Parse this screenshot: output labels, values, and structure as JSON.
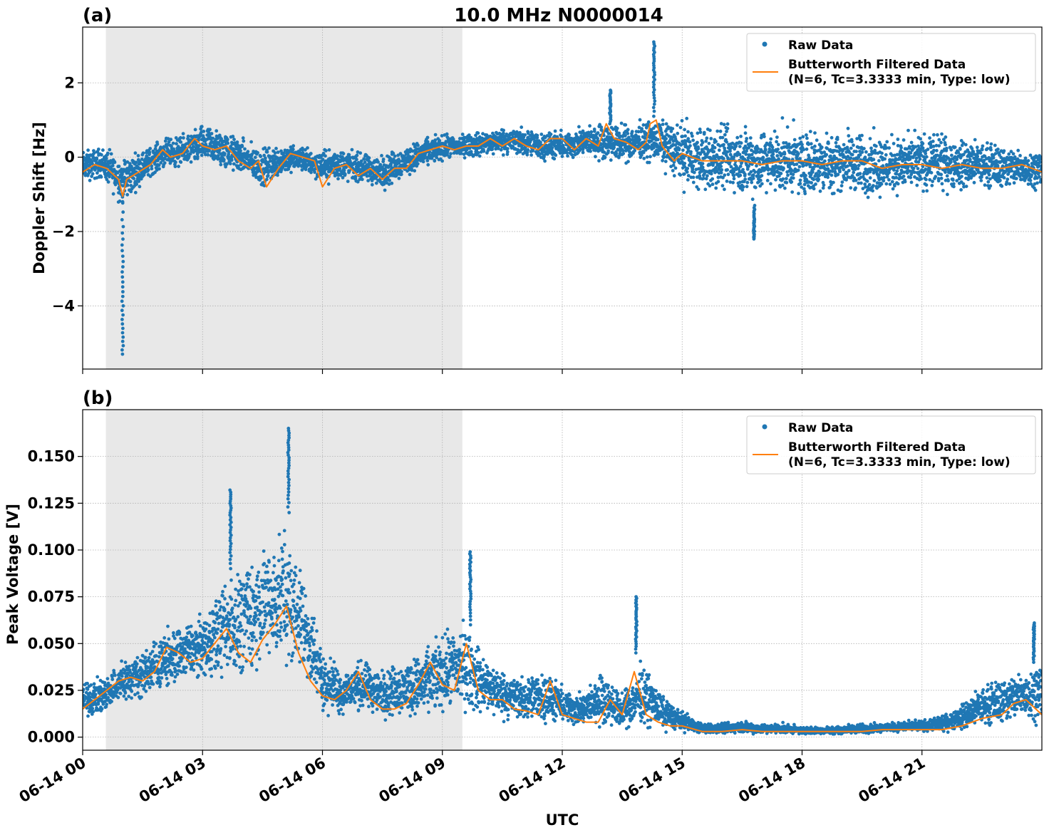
{
  "figure": {
    "title": "10.0 MHz N0000014",
    "xlabel": "UTC"
  },
  "colors": {
    "raw": "#1f77b4",
    "filtered": "#ff7f0e",
    "night_shade": "#e8e8e8",
    "grid": "#b0b0b0"
  },
  "chart_data": [
    {
      "type": "scatter",
      "panel_label": "(a)",
      "ylabel": "Doppler Shift [Hz]",
      "xlim_hours": [
        0,
        24
      ],
      "ylim": [
        -5.7,
        3.5
      ],
      "yticks": [
        2,
        0,
        -2,
        -4
      ],
      "ytick_labels": [
        "2",
        "0",
        "−2",
        "−4"
      ],
      "xticks_hours": [
        0,
        3,
        6,
        9,
        12,
        15,
        18,
        21
      ],
      "shaded_band_hours": [
        0.58,
        9.5
      ],
      "grid": true,
      "legend_position": "top-right",
      "legend": {
        "raw_label": "Raw Data",
        "filtered_label_1": "Butterworth Filtered Data",
        "filtered_label_2": "(N=6, Tc=3.3333 min, Type: low)"
      },
      "series": [
        {
          "name": "Butterworth Filtered Data (N=6, Tc=3.3333 min, Type: low)",
          "kind": "line",
          "x_hours": [
            0,
            0.3,
            0.6,
            0.9,
            1.0,
            1.1,
            1.4,
            1.7,
            2.0,
            2.2,
            2.5,
            2.8,
            3.0,
            3.3,
            3.6,
            3.9,
            4.2,
            4.4,
            4.6,
            4.9,
            5.2,
            5.5,
            5.8,
            6.0,
            6.3,
            6.6,
            6.9,
            7.2,
            7.5,
            7.8,
            8.1,
            8.4,
            8.7,
            9.0,
            9.3,
            9.6,
            9.9,
            10.2,
            10.5,
            10.8,
            11.1,
            11.4,
            11.7,
            12.0,
            12.3,
            12.6,
            12.9,
            13.1,
            13.3,
            13.6,
            13.9,
            14.1,
            14.2,
            14.35,
            14.5,
            14.8,
            15.0,
            15.5,
            16.0,
            16.5,
            17.0,
            17.5,
            18.0,
            18.5,
            19.0,
            19.5,
            20.0,
            20.5,
            21.0,
            21.5,
            22.0,
            22.5,
            23.0,
            23.5,
            24.0
          ],
          "y": [
            -0.4,
            -0.2,
            -0.3,
            -0.6,
            -1.05,
            -0.6,
            -0.4,
            -0.2,
            0.2,
            0.0,
            0.1,
            0.5,
            0.3,
            0.2,
            0.3,
            -0.1,
            -0.3,
            -0.1,
            -0.8,
            -0.3,
            0.1,
            0.0,
            -0.1,
            -0.8,
            -0.3,
            -0.2,
            -0.5,
            -0.3,
            -0.6,
            -0.3,
            -0.3,
            0.1,
            0.2,
            0.3,
            0.2,
            0.3,
            0.3,
            0.5,
            0.3,
            0.5,
            0.3,
            0.2,
            0.5,
            0.5,
            0.2,
            0.5,
            0.3,
            0.9,
            0.5,
            0.4,
            0.2,
            0.4,
            0.9,
            1.0,
            0.3,
            -0.1,
            0.1,
            -0.1,
            -0.1,
            -0.1,
            -0.2,
            -0.1,
            -0.1,
            -0.2,
            -0.1,
            -0.1,
            -0.3,
            -0.2,
            -0.2,
            -0.3,
            -0.2,
            -0.3,
            -0.3,
            -0.2,
            -0.4
          ]
        },
        {
          "name": "Raw Data",
          "kind": "scatter",
          "x_hours": [
            0,
            0.5,
            1.0,
            1.5,
            2.0,
            2.5,
            3.0,
            3.5,
            4.0,
            4.5,
            5.0,
            5.5,
            6.0,
            6.5,
            7.0,
            7.5,
            8.0,
            8.5,
            9.0,
            9.5,
            10.0,
            10.5,
            11.0,
            11.5,
            12.0,
            12.5,
            13.0,
            13.5,
            14.0,
            14.5,
            15.0,
            15.5,
            16.0,
            16.5,
            17.0,
            17.5,
            18.0,
            18.5,
            19.0,
            19.5,
            20.0,
            20.5,
            21.0,
            21.5,
            22.0,
            22.5,
            23.0,
            23.5,
            24.0
          ],
          "y_min": [
            -0.8,
            -0.7,
            -1.5,
            -0.8,
            -0.4,
            -0.4,
            -0.3,
            -0.5,
            -0.6,
            -1.0,
            -0.6,
            -0.5,
            -0.8,
            -0.8,
            -0.8,
            -1.0,
            -0.7,
            -0.4,
            -0.2,
            -0.1,
            -0.1,
            0.0,
            -0.1,
            -0.2,
            -0.2,
            -0.1,
            -0.2,
            -0.3,
            -0.2,
            -0.4,
            -1.0,
            -1.3,
            -1.2,
            -1.4,
            -1.3,
            -1.3,
            -1.3,
            -1.3,
            -1.2,
            -1.3,
            -1.3,
            -1.2,
            -1.2,
            -1.1,
            -1.1,
            -1.0,
            -1.0,
            -1.0,
            -0.9
          ],
          "y_max": [
            0.3,
            0.4,
            0.2,
            0.3,
            0.6,
            0.7,
            1.0,
            0.9,
            0.6,
            0.4,
            0.5,
            0.4,
            0.3,
            0.4,
            0.2,
            0.2,
            0.4,
            0.6,
            0.7,
            0.7,
            0.8,
            0.9,
            0.9,
            0.8,
            0.8,
            0.9,
            1.1,
            1.0,
            1.1,
            1.2,
            1.2,
            1.1,
            1.1,
            1.2,
            1.1,
            1.1,
            1.0,
            1.0,
            1.0,
            0.9,
            0.9,
            0.8,
            0.9,
            0.8,
            0.7,
            0.6,
            0.5,
            0.4,
            0.3
          ]
        }
      ],
      "spikes": [
        {
          "x_hour": 1.0,
          "y_from": -1.2,
          "y_to": -5.3
        },
        {
          "x_hour": 13.2,
          "y_from": 0.9,
          "y_to": 1.8
        },
        {
          "x_hour": 14.3,
          "y_from": 1.1,
          "y_to": 3.1
        },
        {
          "x_hour": 16.8,
          "y_from": -1.3,
          "y_to": -2.2
        }
      ]
    },
    {
      "type": "scatter",
      "panel_label": "(b)",
      "ylabel": "Peak Voltage [V]",
      "xlim_hours": [
        0,
        24
      ],
      "ylim": [
        -0.007,
        0.175
      ],
      "yticks": [
        0.15,
        0.125,
        0.1,
        0.075,
        0.05,
        0.025,
        0.0
      ],
      "ytick_labels": [
        "0.150",
        "0.125",
        "0.100",
        "0.075",
        "0.050",
        "0.025",
        "0.000"
      ],
      "xticks_hours": [
        0,
        3,
        6,
        9,
        12,
        15,
        18,
        21
      ],
      "xtick_labels": [
        "06-14 00",
        "06-14 03",
        "06-14 06",
        "06-14 09",
        "06-14 12",
        "06-14 15",
        "06-14 18",
        "06-14 21"
      ],
      "shaded_band_hours": [
        0.58,
        9.5
      ],
      "grid": true,
      "legend_position": "top-right",
      "legend": {
        "raw_label": "Raw Data",
        "filtered_label_1": "Butterworth Filtered Data",
        "filtered_label_2": "(N=6, Tc=3.3333 min, Type: low)"
      },
      "series": [
        {
          "name": "Butterworth Filtered Data (N=6, Tc=3.3333 min, Type: low)",
          "kind": "line",
          "x_hours": [
            0,
            0.3,
            0.6,
            0.9,
            1.2,
            1.5,
            1.8,
            2.1,
            2.4,
            2.7,
            3.0,
            3.3,
            3.6,
            3.9,
            4.2,
            4.5,
            4.8,
            5.1,
            5.4,
            5.7,
            6.0,
            6.3,
            6.6,
            6.9,
            7.2,
            7.5,
            7.8,
            8.1,
            8.4,
            8.7,
            9.0,
            9.3,
            9.6,
            9.9,
            10.2,
            10.5,
            10.8,
            11.1,
            11.4,
            11.7,
            12.0,
            12.3,
            12.6,
            12.9,
            13.2,
            13.5,
            13.8,
            14.1,
            14.4,
            14.7,
            15.0,
            15.5,
            16.0,
            16.5,
            17.0,
            17.5,
            18.0,
            18.5,
            19.0,
            19.5,
            20.0,
            20.5,
            21.0,
            21.5,
            22.0,
            22.5,
            23.0,
            23.3,
            23.6,
            24.0
          ],
          "y": [
            0.015,
            0.02,
            0.025,
            0.03,
            0.032,
            0.03,
            0.035,
            0.048,
            0.045,
            0.04,
            0.042,
            0.05,
            0.058,
            0.045,
            0.04,
            0.052,
            0.06,
            0.07,
            0.045,
            0.03,
            0.022,
            0.02,
            0.025,
            0.035,
            0.02,
            0.015,
            0.015,
            0.018,
            0.028,
            0.04,
            0.028,
            0.025,
            0.05,
            0.025,
            0.02,
            0.02,
            0.015,
            0.014,
            0.012,
            0.03,
            0.012,
            0.01,
            0.008,
            0.008,
            0.02,
            0.012,
            0.035,
            0.012,
            0.008,
            0.006,
            0.006,
            0.003,
            0.003,
            0.004,
            0.003,
            0.003,
            0.003,
            0.003,
            0.003,
            0.003,
            0.004,
            0.004,
            0.004,
            0.004,
            0.006,
            0.01,
            0.012,
            0.018,
            0.02,
            0.012
          ]
        },
        {
          "name": "Raw Data",
          "kind": "scatter",
          "x_hours": [
            0,
            0.5,
            1.0,
            1.5,
            2.0,
            2.5,
            3.0,
            3.5,
            4.0,
            4.5,
            5.0,
            5.5,
            6.0,
            6.5,
            7.0,
            7.5,
            8.0,
            8.5,
            9.0,
            9.5,
            10.0,
            10.5,
            11.0,
            11.5,
            12.0,
            12.5,
            13.0,
            13.5,
            14.0,
            14.5,
            15.0,
            15.5,
            16.0,
            16.5,
            17.0,
            17.5,
            18.0,
            18.5,
            19.0,
            19.5,
            20.0,
            20.5,
            21.0,
            21.5,
            22.0,
            22.5,
            23.0,
            23.5,
            24.0
          ],
          "y_min": [
            0.008,
            0.01,
            0.015,
            0.018,
            0.02,
            0.025,
            0.028,
            0.025,
            0.025,
            0.03,
            0.03,
            0.025,
            0.01,
            0.008,
            0.01,
            0.007,
            0.007,
            0.006,
            0.008,
            0.007,
            0.007,
            0.006,
            0.005,
            0.004,
            0.004,
            0.003,
            0.003,
            0.002,
            0.002,
            0.002,
            0.002,
            0.001,
            0.001,
            0.001,
            0.001,
            0.001,
            0.001,
            0.001,
            0.001,
            0.001,
            0.002,
            0.002,
            0.002,
            0.002,
            0.002,
            0.003,
            0.004,
            0.005,
            0.005
          ],
          "y_max": [
            0.03,
            0.035,
            0.045,
            0.05,
            0.06,
            0.065,
            0.07,
            0.09,
            0.1,
            0.11,
            0.12,
            0.1,
            0.05,
            0.04,
            0.045,
            0.04,
            0.045,
            0.05,
            0.06,
            0.07,
            0.05,
            0.04,
            0.035,
            0.04,
            0.03,
            0.025,
            0.04,
            0.025,
            0.045,
            0.025,
            0.015,
            0.008,
            0.008,
            0.01,
            0.008,
            0.008,
            0.006,
            0.006,
            0.007,
            0.008,
            0.008,
            0.009,
            0.01,
            0.012,
            0.02,
            0.03,
            0.035,
            0.04,
            0.045
          ]
        }
      ],
      "spikes": [
        {
          "x_hour": 3.7,
          "y_from": 0.09,
          "y_to": 0.132
        },
        {
          "x_hour": 5.15,
          "y_from": 0.12,
          "y_to": 0.165
        },
        {
          "x_hour": 9.7,
          "y_from": 0.06,
          "y_to": 0.099
        },
        {
          "x_hour": 13.85,
          "y_from": 0.045,
          "y_to": 0.075
        },
        {
          "x_hour": 23.8,
          "y_from": 0.04,
          "y_to": 0.061
        }
      ]
    }
  ]
}
